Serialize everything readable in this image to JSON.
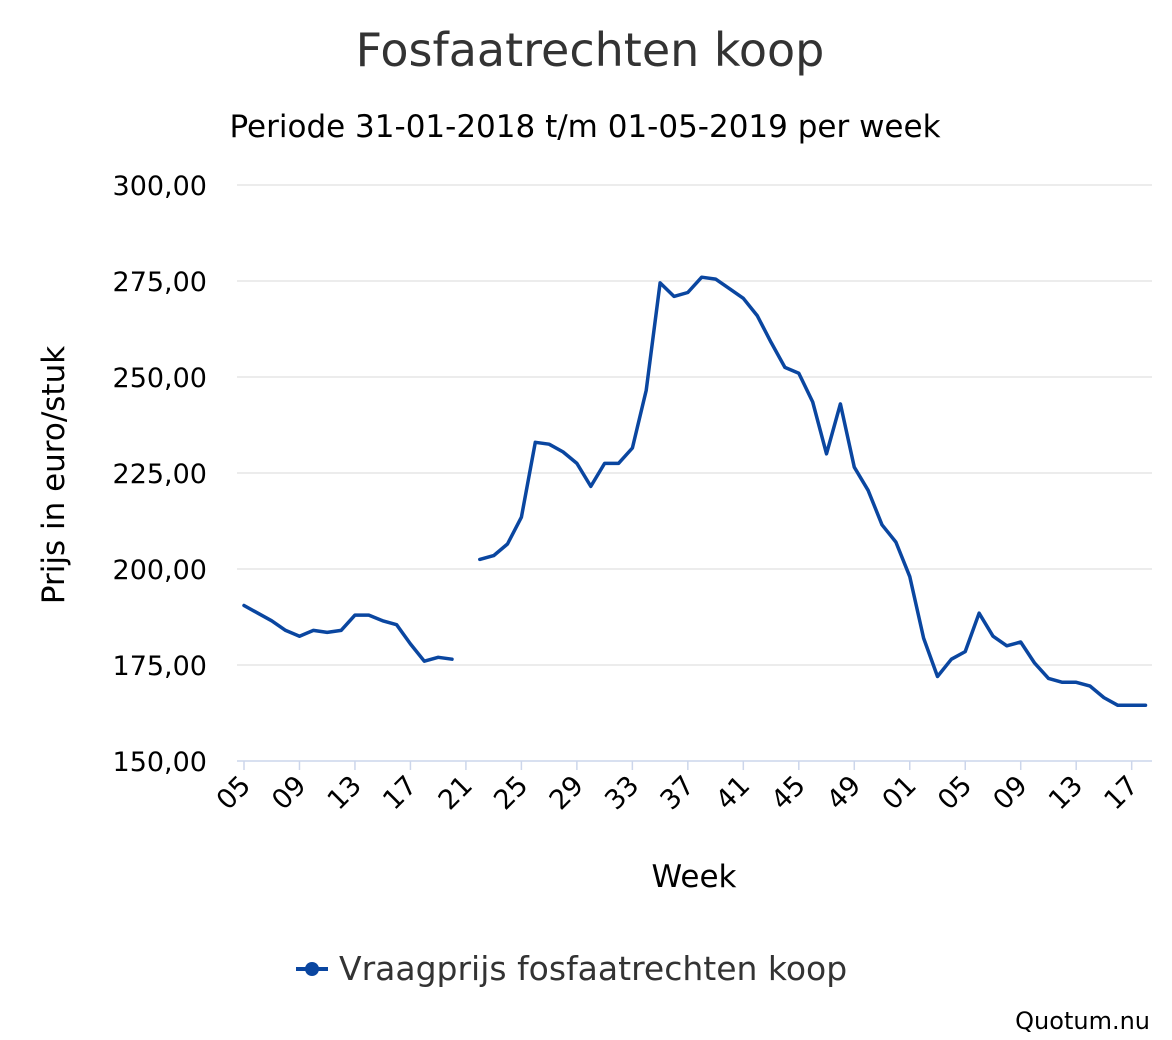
{
  "chart_data": {
    "type": "line",
    "title": "Fosfaatrechten koop",
    "subtitle": "Periode 31-01-2018 t/m 01-05-2019 per week",
    "xlabel": "Week",
    "ylabel": "Prijs in euro/stuk",
    "ylim": [
      150,
      300
    ],
    "yticks": [
      "150,00",
      "175,00",
      "200,00",
      "225,00",
      "250,00",
      "275,00",
      "300,00"
    ],
    "ytick_values": [
      150,
      175,
      200,
      225,
      250,
      275,
      300
    ],
    "x": [
      "05",
      "06",
      "07",
      "08",
      "09",
      "10",
      "11",
      "12",
      "13",
      "14",
      "15",
      "16",
      "17",
      "18",
      "19",
      "20",
      "21",
      "22",
      "23",
      "24",
      "25",
      "26",
      "27",
      "28",
      "29",
      "30",
      "31",
      "32",
      "33",
      "34",
      "35",
      "36",
      "37",
      "38",
      "39",
      "40",
      "41",
      "42",
      "43",
      "44",
      "45",
      "46",
      "47",
      "48",
      "49",
      "50",
      "51",
      "52",
      "01",
      "02",
      "03",
      "04",
      "05",
      "06",
      "07",
      "08",
      "09",
      "10",
      "11",
      "12",
      "13",
      "14",
      "15",
      "16",
      "17",
      "18"
    ],
    "xtick_labels": [
      "05",
      "09",
      "13",
      "17",
      "21",
      "25",
      "29",
      "33",
      "37",
      "41",
      "45",
      "49",
      "01",
      "05",
      "09",
      "13",
      "17"
    ],
    "xtick_indices": [
      0,
      4,
      8,
      12,
      16,
      20,
      24,
      28,
      32,
      36,
      40,
      44,
      48,
      52,
      56,
      60,
      64
    ],
    "grid": true,
    "legend_position": "bottom-center",
    "series": [
      {
        "name": "Vraagprijs fosfaatrechten koop",
        "color": "#0a46a0",
        "values": [
          190.5,
          188.5,
          186.5,
          184,
          182.5,
          184,
          183.5,
          184,
          188,
          188,
          186.5,
          185.5,
          180.5,
          176,
          177,
          176.5,
          null,
          202.5,
          203.5,
          206.5,
          213.5,
          233,
          232.5,
          230.5,
          227.5,
          221.5,
          227.5,
          227.5,
          231.5,
          246.5,
          274.5,
          271,
          272,
          276,
          275.5,
          273,
          270.5,
          266,
          259,
          252.5,
          251,
          243.5,
          230,
          243,
          226.5,
          220.5,
          211.5,
          207,
          198,
          182,
          172,
          176.5,
          178.5,
          188.5,
          182.5,
          180,
          181,
          175.5,
          171.5,
          170.5,
          170.5,
          169.5,
          166.5,
          164.5,
          164.5,
          164.5
        ]
      }
    ]
  },
  "credit": "Quotum.nu"
}
